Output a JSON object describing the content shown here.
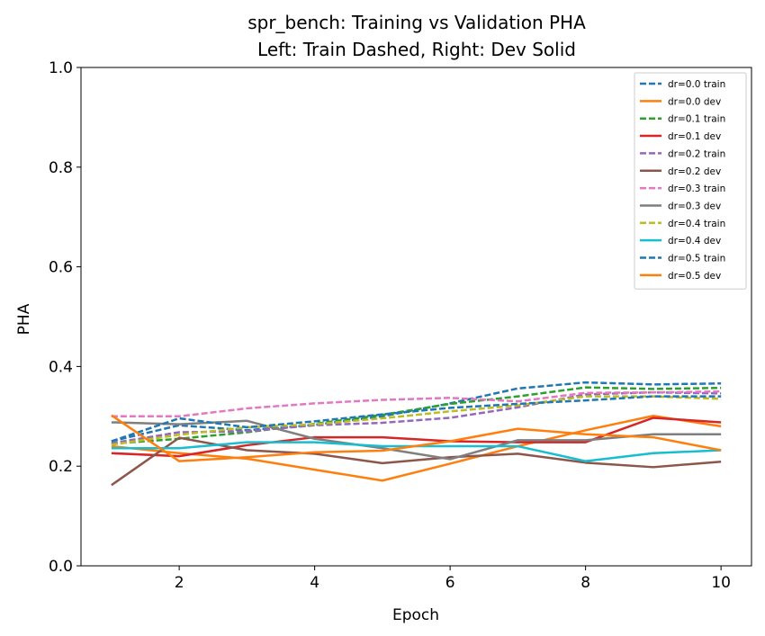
{
  "chart_data": {
    "type": "line",
    "title": "spr_bench: Training vs Validation PHA",
    "subtitle": "Left: Train Dashed, Right: Dev Solid",
    "xlabel": "Epoch",
    "ylabel": "PHA",
    "xlim": [
      0.55,
      10.45
    ],
    "ylim": [
      0.0,
      1.0
    ],
    "xticks": [
      2,
      4,
      6,
      8,
      10
    ],
    "yticks": [
      0.0,
      0.2,
      0.4,
      0.6,
      0.8,
      1.0
    ],
    "ytick_labels": [
      "0.0",
      "0.2",
      "0.4",
      "0.6",
      "0.8",
      "1.0"
    ],
    "grid": false,
    "legend_position": "top-right",
    "x": [
      1,
      2,
      3,
      4,
      5,
      6,
      7,
      8,
      9,
      10
    ],
    "series": [
      {
        "name": "dr=0.0 train",
        "color": "#1f77b4",
        "style": "dashed",
        "values": [
          0.25,
          0.282,
          0.272,
          0.283,
          0.3,
          0.326,
          0.356,
          0.368,
          0.364,
          0.366
        ]
      },
      {
        "name": "dr=0.0 dev",
        "color": "#ff7f0e",
        "style": "solid",
        "values": [
          0.24,
          0.226,
          0.215,
          0.193,
          0.171,
          0.205,
          0.24,
          0.272,
          0.301,
          0.28
        ]
      },
      {
        "name": "dr=0.1 train",
        "color": "#2ca02c",
        "style": "dashed",
        "values": [
          0.245,
          0.255,
          0.268,
          0.285,
          0.303,
          0.325,
          0.34,
          0.358,
          0.355,
          0.357
        ]
      },
      {
        "name": "dr=0.1 dev",
        "color": "#d62728",
        "style": "solid",
        "values": [
          0.226,
          0.22,
          0.242,
          0.258,
          0.258,
          0.25,
          0.248,
          0.248,
          0.297,
          0.288
        ]
      },
      {
        "name": "dr=0.2 train",
        "color": "#9467bd",
        "style": "dashed",
        "values": [
          0.246,
          0.268,
          0.27,
          0.282,
          0.287,
          0.297,
          0.318,
          0.344,
          0.348,
          0.346
        ]
      },
      {
        "name": "dr=0.2 dev",
        "color": "#8c564b",
        "style": "solid",
        "values": [
          0.162,
          0.257,
          0.232,
          0.225,
          0.206,
          0.218,
          0.225,
          0.207,
          0.198,
          0.209
        ]
      },
      {
        "name": "dr=0.3 train",
        "color": "#e377c2",
        "style": "dashed",
        "values": [
          0.3,
          0.3,
          0.316,
          0.326,
          0.333,
          0.337,
          0.33,
          0.347,
          0.348,
          0.35
        ]
      },
      {
        "name": "dr=0.3 dev",
        "color": "#7f7f7f",
        "style": "solid",
        "values": [
          0.288,
          0.284,
          0.291,
          0.255,
          0.236,
          0.214,
          0.252,
          0.252,
          0.264,
          0.264
        ]
      },
      {
        "name": "dr=0.4 train",
        "color": "#bcbd22",
        "style": "dashed",
        "values": [
          0.243,
          0.263,
          0.278,
          0.284,
          0.296,
          0.31,
          0.322,
          0.34,
          0.34,
          0.335
        ]
      },
      {
        "name": "dr=0.4 dev",
        "color": "#17becf",
        "style": "solid",
        "values": [
          0.236,
          0.236,
          0.248,
          0.248,
          0.24,
          0.24,
          0.24,
          0.21,
          0.226,
          0.232
        ]
      },
      {
        "name": "dr=0.5 train",
        "color": "#1f77b4",
        "style": "dashed",
        "values": [
          0.25,
          0.296,
          0.278,
          0.29,
          0.304,
          0.317,
          0.325,
          0.332,
          0.34,
          0.34
        ]
      },
      {
        "name": "dr=0.5 dev",
        "color": "#ff7f0e",
        "style": "solid",
        "values": [
          0.302,
          0.21,
          0.218,
          0.228,
          0.231,
          0.25,
          0.275,
          0.264,
          0.258,
          0.232
        ]
      }
    ]
  }
}
